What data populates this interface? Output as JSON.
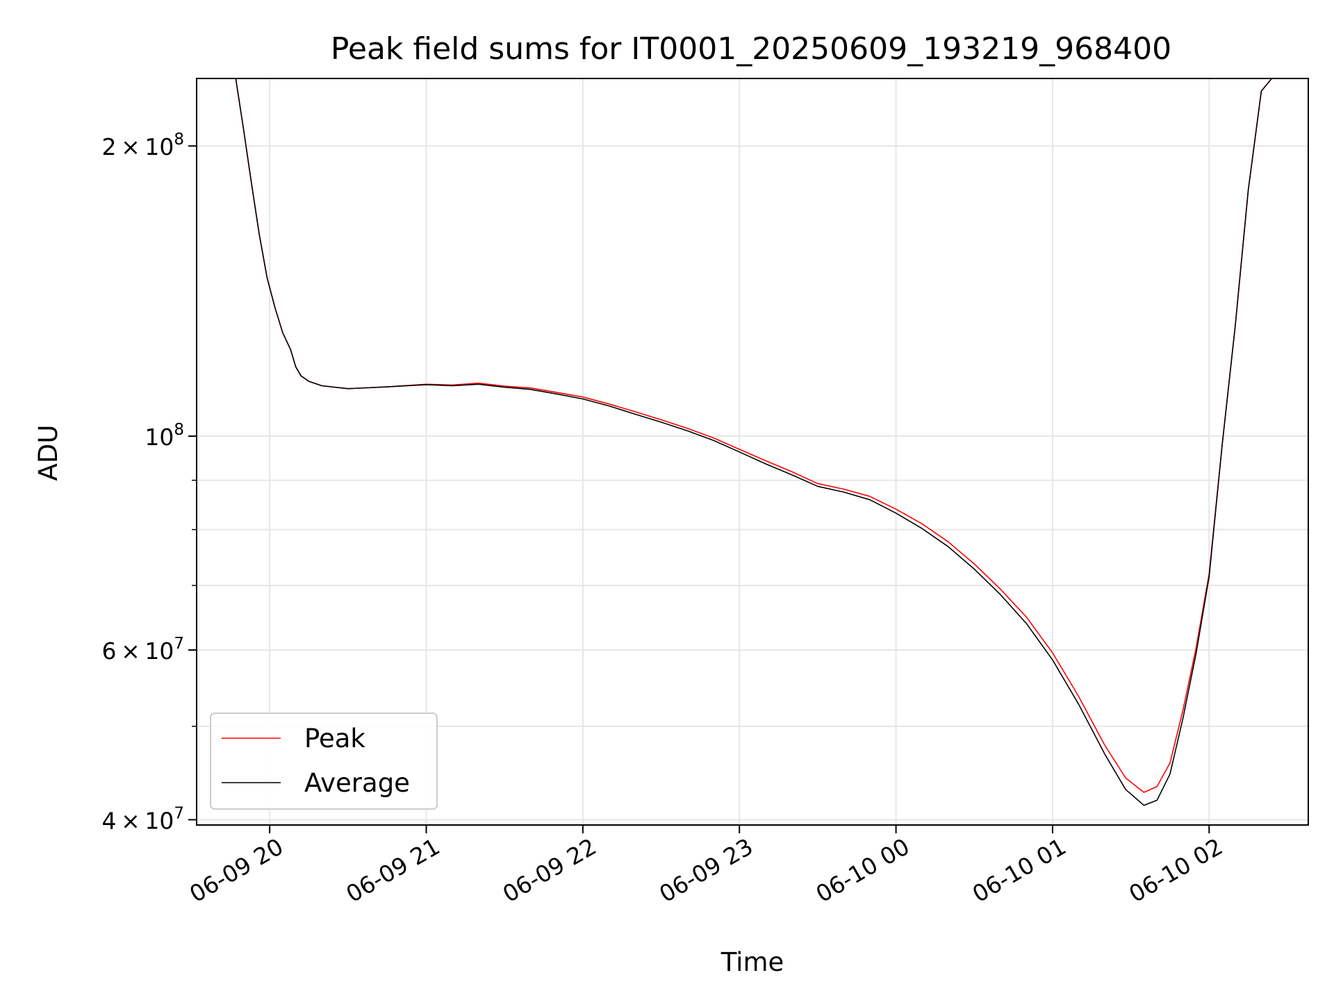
{
  "chart_data": {
    "type": "line",
    "title": "Peak field sums for IT0001_20250609_193219_968400",
    "xlabel": "Time",
    "ylabel": "ADU",
    "xlim": [
      "2025-06-09 19:32",
      "2025-06-10 02:38"
    ],
    "ylim": [
      39500000,
      235000000
    ],
    "yscale": "log",
    "grid": true,
    "legend_position": "lower-left",
    "x_ticks": [
      {
        "value": "2025-06-09 20:00",
        "label": "06-09 20"
      },
      {
        "value": "2025-06-09 21:00",
        "label": "06-09 21"
      },
      {
        "value": "2025-06-09 22:00",
        "label": "06-09 22"
      },
      {
        "value": "2025-06-09 23:00",
        "label": "06-09 23"
      },
      {
        "value": "2025-06-10 00:00",
        "label": "06-10 00"
      },
      {
        "value": "2025-06-10 01:00",
        "label": "06-10 01"
      },
      {
        "value": "2025-06-10 02:00",
        "label": "06-10 02"
      }
    ],
    "y_ticks": [
      {
        "value": 200000000,
        "mantissa": "2",
        "exponent": "8"
      },
      {
        "value": 100000000,
        "mantissa": "",
        "exponent": "8"
      },
      {
        "value": 60000000,
        "mantissa": "6",
        "exponent": "7"
      },
      {
        "value": 40000000,
        "mantissa": "4",
        "exponent": "7"
      }
    ],
    "y_minor_ticks": [
      50000000,
      70000000,
      80000000,
      90000000
    ],
    "series": [
      {
        "name": "Peak",
        "color": "#ff0000",
        "x": [
          "2025-06-09 19:47",
          "2025-06-09 19:50",
          "2025-06-09 19:53",
          "2025-06-09 19:56",
          "2025-06-09 19:59",
          "2025-06-09 20:02",
          "2025-06-09 20:05",
          "2025-06-09 20:08",
          "2025-06-09 20:10",
          "2025-06-09 20:12",
          "2025-06-09 20:15",
          "2025-06-09 20:20",
          "2025-06-09 20:30",
          "2025-06-09 20:45",
          "2025-06-09 21:00",
          "2025-06-09 21:10",
          "2025-06-09 21:20",
          "2025-06-09 21:30",
          "2025-06-09 21:40",
          "2025-06-09 21:50",
          "2025-06-09 22:00",
          "2025-06-09 22:10",
          "2025-06-09 22:20",
          "2025-06-09 22:30",
          "2025-06-09 22:40",
          "2025-06-09 22:50",
          "2025-06-09 23:00",
          "2025-06-09 23:10",
          "2025-06-09 23:20",
          "2025-06-09 23:30",
          "2025-06-09 23:40",
          "2025-06-09 23:50",
          "2025-06-10 00:00",
          "2025-06-10 00:10",
          "2025-06-10 00:20",
          "2025-06-10 00:30",
          "2025-06-10 00:40",
          "2025-06-10 00:50",
          "2025-06-10 01:00",
          "2025-06-10 01:10",
          "2025-06-10 01:20",
          "2025-06-10 01:28",
          "2025-06-10 01:35",
          "2025-06-10 01:40",
          "2025-06-10 01:45",
          "2025-06-10 01:50",
          "2025-06-10 01:55",
          "2025-06-10 02:00",
          "2025-06-10 02:05",
          "2025-06-10 02:10",
          "2025-06-10 02:15",
          "2025-06-10 02:20",
          "2025-06-10 02:24"
        ],
        "y": [
          235000000,
          208000000,
          183000000,
          162000000,
          146000000,
          136000000,
          128000000,
          123000000,
          118000000,
          115500000,
          114000000,
          112800000,
          112000000,
          112500000,
          113200000,
          113000000,
          113500000,
          112700000,
          112200000,
          111000000,
          109800000,
          108000000,
          106000000,
          104000000,
          101900000,
          99600000,
          96900000,
          94300000,
          91900000,
          89300000,
          88100000,
          86600000,
          84000000,
          81100000,
          77700000,
          73700000,
          69400000,
          64900000,
          59600000,
          53700000,
          47800000,
          44200000,
          42700000,
          43300000,
          45800000,
          52000000,
          60300000,
          72000000,
          98000000,
          130000000,
          180000000,
          228000000,
          235000000
        ]
      },
      {
        "name": "Average",
        "color": "#000000",
        "x": [
          "2025-06-09 19:47",
          "2025-06-09 19:50",
          "2025-06-09 19:53",
          "2025-06-09 19:56",
          "2025-06-09 19:59",
          "2025-06-09 20:02",
          "2025-06-09 20:05",
          "2025-06-09 20:08",
          "2025-06-09 20:10",
          "2025-06-09 20:12",
          "2025-06-09 20:15",
          "2025-06-09 20:20",
          "2025-06-09 20:30",
          "2025-06-09 20:45",
          "2025-06-09 21:00",
          "2025-06-09 21:10",
          "2025-06-09 21:20",
          "2025-06-09 21:30",
          "2025-06-09 21:40",
          "2025-06-09 21:50",
          "2025-06-09 22:00",
          "2025-06-09 22:10",
          "2025-06-09 22:20",
          "2025-06-09 22:30",
          "2025-06-09 22:40",
          "2025-06-09 22:50",
          "2025-06-09 23:00",
          "2025-06-09 23:10",
          "2025-06-09 23:20",
          "2025-06-09 23:30",
          "2025-06-09 23:40",
          "2025-06-09 23:50",
          "2025-06-10 00:00",
          "2025-06-10 00:10",
          "2025-06-10 00:20",
          "2025-06-10 00:30",
          "2025-06-10 00:40",
          "2025-06-10 00:50",
          "2025-06-10 01:00",
          "2025-06-10 01:10",
          "2025-06-10 01:20",
          "2025-06-10 01:28",
          "2025-06-10 01:35",
          "2025-06-10 01:40",
          "2025-06-10 01:45",
          "2025-06-10 01:50",
          "2025-06-10 01:55",
          "2025-06-10 02:00",
          "2025-06-10 02:05",
          "2025-06-10 02:10",
          "2025-06-10 02:15",
          "2025-06-10 02:20",
          "2025-06-10 02:24"
        ],
        "y": [
          235000000,
          208000000,
          183000000,
          162000000,
          146000000,
          136000000,
          128000000,
          123000000,
          118000000,
          115500000,
          114000000,
          112800000,
          112000000,
          112500000,
          113100000,
          112800000,
          113200000,
          112400000,
          111800000,
          110600000,
          109300000,
          107500000,
          105400000,
          103400000,
          101300000,
          99000000,
          96300000,
          93600000,
          91200000,
          88700000,
          87500000,
          85900000,
          83200000,
          80200000,
          76800000,
          72800000,
          68500000,
          63900000,
          58600000,
          52700000,
          46800000,
          43000000,
          41400000,
          41900000,
          44600000,
          51000000,
          59500000,
          71500000,
          98000000,
          130000000,
          180000000,
          228000000,
          235000000
        ]
      }
    ]
  }
}
